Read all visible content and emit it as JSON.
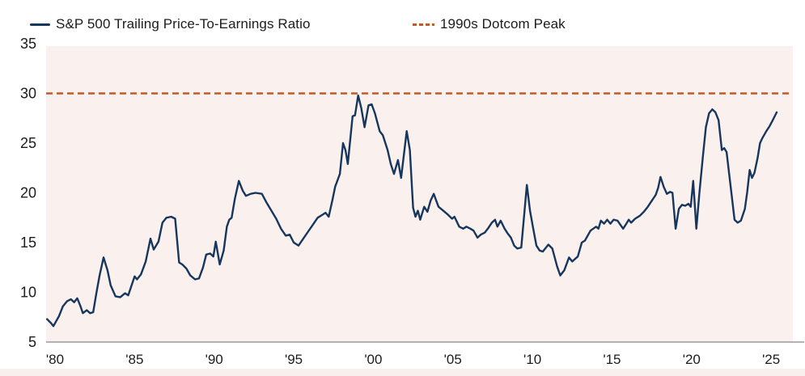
{
  "legend": {
    "series1_label": "S&P 500 Trailing Price-To-Earnings Ratio",
    "series2_label": "1990s Dotcom Peak"
  },
  "colors": {
    "pe_line": "#17365d",
    "dotcom_line": "#c05a28",
    "plot_bg": "#faf1ee",
    "bottom_band": "#f9efec",
    "axis_line": "#9a9a9a",
    "text": "#1c1c1c"
  },
  "chart_data": {
    "type": "line",
    "title": "",
    "xlabel": "",
    "ylabel": "",
    "ylim": [
      5,
      35
    ],
    "xlim": [
      1979.4,
      2026.2
    ],
    "grid": false,
    "legend_position": "top",
    "y_ticks": [
      35,
      30,
      25,
      20,
      15,
      10,
      5
    ],
    "x_ticks": [
      {
        "year": 1980,
        "label": "'80"
      },
      {
        "year": 1985,
        "label": "'85"
      },
      {
        "year": 1990,
        "label": "'90"
      },
      {
        "year": 1995,
        "label": "'95"
      },
      {
        "year": 2000,
        "label": "'00"
      },
      {
        "year": 2005,
        "label": "'05"
      },
      {
        "year": 2010,
        "label": "'10"
      },
      {
        "year": 2015,
        "label": "'15"
      },
      {
        "year": 2020,
        "label": "'20"
      },
      {
        "year": 2025,
        "label": "'25"
      }
    ],
    "series": [
      {
        "name": "S&P 500 Trailing Price-To-Earnings Ratio",
        "style": "solid",
        "color_key": "pe_line",
        "points": [
          [
            1979.5,
            7.3
          ],
          [
            1979.75,
            6.9
          ],
          [
            1979.9,
            6.6
          ],
          [
            1980.25,
            7.6
          ],
          [
            1980.5,
            8.6
          ],
          [
            1980.75,
            9.1
          ],
          [
            1981,
            9.3
          ],
          [
            1981.2,
            9.0
          ],
          [
            1981.4,
            9.4
          ],
          [
            1981.6,
            8.6
          ],
          [
            1981.75,
            7.9
          ],
          [
            1982,
            8.2
          ],
          [
            1982.2,
            7.9
          ],
          [
            1982.4,
            8.0
          ],
          [
            1982.6,
            9.9
          ],
          [
            1982.8,
            11.7
          ],
          [
            1983.05,
            13.5
          ],
          [
            1983.3,
            12.2
          ],
          [
            1983.5,
            10.7
          ],
          [
            1983.8,
            9.6
          ],
          [
            1984.1,
            9.5
          ],
          [
            1984.4,
            9.9
          ],
          [
            1984.6,
            9.7
          ],
          [
            1985,
            11.6
          ],
          [
            1985.15,
            11.3
          ],
          [
            1985.4,
            11.8
          ],
          [
            1985.7,
            13.1
          ],
          [
            1986,
            15.4
          ],
          [
            1986.2,
            14.3
          ],
          [
            1986.5,
            15.1
          ],
          [
            1986.75,
            17.0
          ],
          [
            1987,
            17.5
          ],
          [
            1987.3,
            17.6
          ],
          [
            1987.55,
            17.4
          ],
          [
            1987.8,
            13.0
          ],
          [
            1988,
            12.8
          ],
          [
            1988.25,
            12.4
          ],
          [
            1988.5,
            11.7
          ],
          [
            1988.8,
            11.3
          ],
          [
            1989.05,
            11.4
          ],
          [
            1989.3,
            12.5
          ],
          [
            1989.5,
            13.8
          ],
          [
            1989.75,
            13.9
          ],
          [
            1989.95,
            13.6
          ],
          [
            1990.1,
            15.1
          ],
          [
            1990.35,
            12.8
          ],
          [
            1990.6,
            14.2
          ],
          [
            1990.8,
            16.6
          ],
          [
            1990.95,
            17.3
          ],
          [
            1991.1,
            17.5
          ],
          [
            1991.3,
            19.4
          ],
          [
            1991.55,
            21.2
          ],
          [
            1991.8,
            20.2
          ],
          [
            1992,
            19.7
          ],
          [
            1992.3,
            19.9
          ],
          [
            1992.6,
            20.0
          ],
          [
            1993,
            19.9
          ],
          [
            1993.3,
            19.0
          ],
          [
            1993.6,
            18.2
          ],
          [
            1993.9,
            17.4
          ],
          [
            1994.2,
            16.4
          ],
          [
            1994.5,
            15.7
          ],
          [
            1994.75,
            15.8
          ],
          [
            1995,
            15.0
          ],
          [
            1995.3,
            14.7
          ],
          [
            1995.6,
            15.4
          ],
          [
            1995.9,
            16.1
          ],
          [
            1996.2,
            16.8
          ],
          [
            1996.5,
            17.5
          ],
          [
            1996.8,
            17.8
          ],
          [
            1997,
            18.0
          ],
          [
            1997.2,
            17.6
          ],
          [
            1997.45,
            19.4
          ],
          [
            1997.6,
            20.6
          ],
          [
            1997.9,
            21.9
          ],
          [
            1998.1,
            25.0
          ],
          [
            1998.25,
            24.3
          ],
          [
            1998.4,
            22.9
          ],
          [
            1998.7,
            27.7
          ],
          [
            1998.85,
            27.8
          ],
          [
            1999.05,
            29.8
          ],
          [
            1999.25,
            28.5
          ],
          [
            1999.45,
            26.6
          ],
          [
            1999.7,
            28.8
          ],
          [
            1999.9,
            28.9
          ],
          [
            2000.1,
            28.0
          ],
          [
            2000.4,
            26.2
          ],
          [
            2000.6,
            25.8
          ],
          [
            2000.9,
            24.3
          ],
          [
            2001.1,
            22.9
          ],
          [
            2001.3,
            21.9
          ],
          [
            2001.55,
            23.3
          ],
          [
            2001.75,
            21.5
          ],
          [
            2002.1,
            26.2
          ],
          [
            2002.3,
            24.3
          ],
          [
            2002.5,
            18.5
          ],
          [
            2002.65,
            17.6
          ],
          [
            2002.8,
            18.2
          ],
          [
            2002.95,
            17.3
          ],
          [
            2003.2,
            18.6
          ],
          [
            2003.4,
            18.1
          ],
          [
            2003.6,
            19.2
          ],
          [
            2003.8,
            19.9
          ],
          [
            2004.1,
            18.6
          ],
          [
            2004.4,
            18.2
          ],
          [
            2004.7,
            17.8
          ],
          [
            2004.95,
            17.4
          ],
          [
            2005.1,
            17.6
          ],
          [
            2005.4,
            16.6
          ],
          [
            2005.65,
            16.4
          ],
          [
            2005.85,
            16.6
          ],
          [
            2006.1,
            16.4
          ],
          [
            2006.3,
            16.2
          ],
          [
            2006.55,
            15.5
          ],
          [
            2006.75,
            15.8
          ],
          [
            2007,
            16.0
          ],
          [
            2007.2,
            16.4
          ],
          [
            2007.45,
            17.0
          ],
          [
            2007.65,
            17.3
          ],
          [
            2007.8,
            16.6
          ],
          [
            2008,
            17.2
          ],
          [
            2008.25,
            16.4
          ],
          [
            2008.45,
            15.9
          ],
          [
            2008.65,
            15.5
          ],
          [
            2008.85,
            14.7
          ],
          [
            2009.05,
            14.4
          ],
          [
            2009.3,
            14.5
          ],
          [
            2009.65,
            20.8
          ],
          [
            2009.85,
            18.2
          ],
          [
            2010.05,
            16.4
          ],
          [
            2010.25,
            14.7
          ],
          [
            2010.45,
            14.2
          ],
          [
            2010.65,
            14.1
          ],
          [
            2011,
            14.8
          ],
          [
            2011.25,
            14.4
          ],
          [
            2011.55,
            12.6
          ],
          [
            2011.75,
            11.7
          ],
          [
            2012,
            12.2
          ],
          [
            2012.3,
            13.5
          ],
          [
            2012.5,
            13.1
          ],
          [
            2012.85,
            13.6
          ],
          [
            2013.1,
            15.0
          ],
          [
            2013.3,
            15.2
          ],
          [
            2013.65,
            16.2
          ],
          [
            2014,
            16.6
          ],
          [
            2014.15,
            16.4
          ],
          [
            2014.3,
            17.2
          ],
          [
            2014.5,
            16.9
          ],
          [
            2014.7,
            17.3
          ],
          [
            2014.9,
            16.9
          ],
          [
            2015.1,
            17.3
          ],
          [
            2015.35,
            17.2
          ],
          [
            2015.7,
            16.4
          ],
          [
            2015.9,
            16.9
          ],
          [
            2016.05,
            17.3
          ],
          [
            2016.2,
            17.0
          ],
          [
            2016.45,
            17.4
          ],
          [
            2016.75,
            17.7
          ],
          [
            2017,
            18.1
          ],
          [
            2017.25,
            18.6
          ],
          [
            2017.5,
            19.2
          ],
          [
            2017.75,
            19.8
          ],
          [
            2017.9,
            20.5
          ],
          [
            2018.05,
            21.6
          ],
          [
            2018.25,
            20.6
          ],
          [
            2018.45,
            19.9
          ],
          [
            2018.65,
            20.1
          ],
          [
            2018.8,
            20.0
          ],
          [
            2019,
            16.4
          ],
          [
            2019.2,
            18.4
          ],
          [
            2019.4,
            18.8
          ],
          [
            2019.6,
            18.7
          ],
          [
            2019.8,
            18.9
          ],
          [
            2019.95,
            18.6
          ],
          [
            2020.1,
            21.2
          ],
          [
            2020.3,
            16.4
          ],
          [
            2020.5,
            20.1
          ],
          [
            2020.7,
            23.5
          ],
          [
            2020.9,
            26.6
          ],
          [
            2021.1,
            28.0
          ],
          [
            2021.3,
            28.4
          ],
          [
            2021.5,
            28.1
          ],
          [
            2021.7,
            27.3
          ],
          [
            2021.9,
            24.3
          ],
          [
            2022.05,
            24.5
          ],
          [
            2022.2,
            24.1
          ],
          [
            2022.45,
            20.7
          ],
          [
            2022.7,
            17.3
          ],
          [
            2022.9,
            17.0
          ],
          [
            2023.1,
            17.2
          ],
          [
            2023.35,
            18.4
          ],
          [
            2023.5,
            20.1
          ],
          [
            2023.65,
            22.3
          ],
          [
            2023.8,
            21.5
          ],
          [
            2023.95,
            22.0
          ],
          [
            2024.15,
            23.5
          ],
          [
            2024.3,
            25.0
          ],
          [
            2024.45,
            25.5
          ],
          [
            2024.7,
            26.2
          ],
          [
            2024.9,
            26.7
          ],
          [
            2025.1,
            27.3
          ],
          [
            2025.35,
            28.1
          ]
        ]
      },
      {
        "name": "1990s Dotcom Peak",
        "style": "dashed",
        "color_key": "dotcom_line",
        "value": 30
      }
    ]
  }
}
